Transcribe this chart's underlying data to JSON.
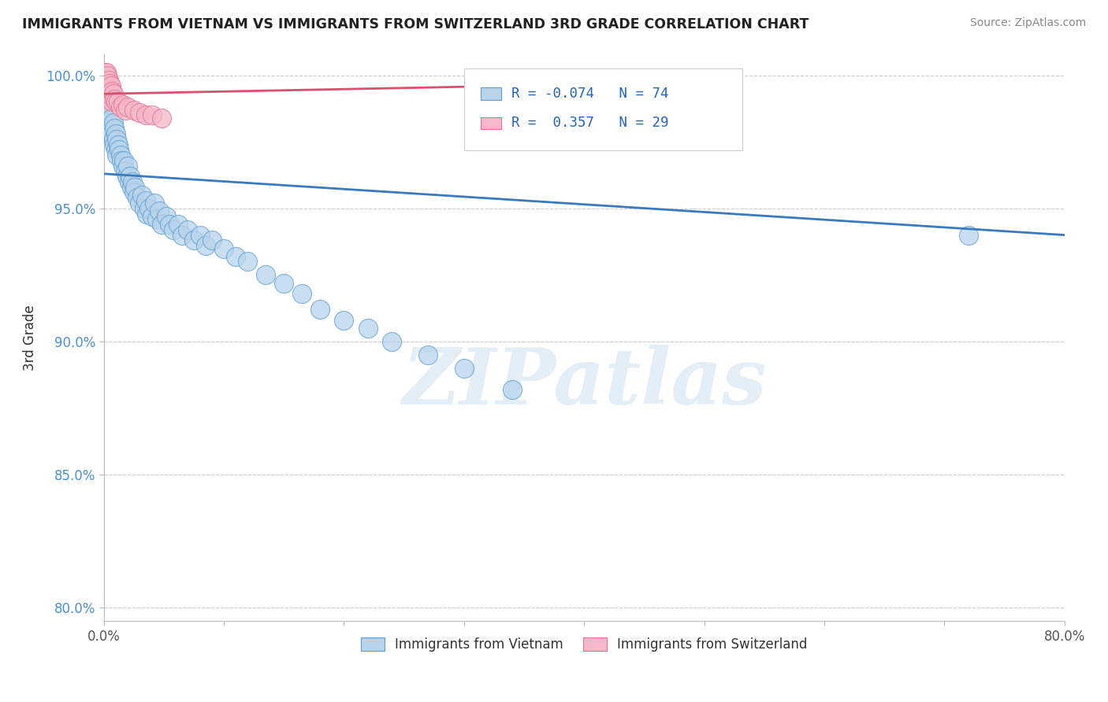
{
  "title": "IMMIGRANTS FROM VIETNAM VS IMMIGRANTS FROM SWITZERLAND 3RD GRADE CORRELATION CHART",
  "source": "Source: ZipAtlas.com",
  "ylabel": "3rd Grade",
  "xlim": [
    0.0,
    0.8
  ],
  "ylim": [
    0.795,
    1.008
  ],
  "xticks": [
    0.0,
    0.1,
    0.2,
    0.3,
    0.4,
    0.5,
    0.6,
    0.7,
    0.8
  ],
  "xticklabels": [
    "0.0%",
    "",
    "",
    "",
    "",
    "",
    "",
    "",
    "80.0%"
  ],
  "yticks": [
    0.8,
    0.85,
    0.9,
    0.95,
    1.0
  ],
  "yticklabels": [
    "80.0%",
    "85.0%",
    "90.0%",
    "95.0%",
    "100.0%"
  ],
  "blue_fill": "#b8d4eb",
  "pink_fill": "#f5b8c8",
  "blue_edge": "#5a9fd4",
  "pink_edge": "#e87090",
  "blue_line_color": "#3a7abf",
  "pink_line_color": "#d95070",
  "r_blue": -0.074,
  "n_blue": 74,
  "r_pink": 0.357,
  "n_pink": 29,
  "watermark": "ZIPatlas",
  "legend_blue": "Immigrants from Vietnam",
  "legend_pink": "Immigrants from Switzerland",
  "blue_points_x": [
    0.001,
    0.001,
    0.002,
    0.002,
    0.003,
    0.003,
    0.003,
    0.004,
    0.004,
    0.005,
    0.005,
    0.006,
    0.006,
    0.007,
    0.007,
    0.008,
    0.008,
    0.009,
    0.009,
    0.01,
    0.01,
    0.011,
    0.011,
    0.012,
    0.013,
    0.014,
    0.015,
    0.016,
    0.017,
    0.018,
    0.019,
    0.02,
    0.021,
    0.022,
    0.023,
    0.024,
    0.025,
    0.026,
    0.028,
    0.03,
    0.032,
    0.034,
    0.035,
    0.036,
    0.038,
    0.04,
    0.042,
    0.044,
    0.046,
    0.048,
    0.052,
    0.055,
    0.058,
    0.062,
    0.065,
    0.07,
    0.075,
    0.08,
    0.085,
    0.09,
    0.1,
    0.11,
    0.12,
    0.135,
    0.15,
    0.165,
    0.18,
    0.2,
    0.22,
    0.24,
    0.27,
    0.3,
    0.34,
    0.72
  ],
  "blue_points_y": [
    0.99,
    0.984,
    0.992,
    0.986,
    0.993,
    0.988,
    0.983,
    0.99,
    0.985,
    0.988,
    0.982,
    0.986,
    0.98,
    0.984,
    0.978,
    0.982,
    0.976,
    0.98,
    0.974,
    0.978,
    0.972,
    0.976,
    0.97,
    0.974,
    0.972,
    0.97,
    0.968,
    0.966,
    0.968,
    0.964,
    0.962,
    0.966,
    0.96,
    0.962,
    0.958,
    0.96,
    0.956,
    0.958,
    0.954,
    0.952,
    0.955,
    0.95,
    0.953,
    0.948,
    0.95,
    0.947,
    0.952,
    0.946,
    0.949,
    0.944,
    0.947,
    0.944,
    0.942,
    0.944,
    0.94,
    0.942,
    0.938,
    0.94,
    0.936,
    0.938,
    0.935,
    0.932,
    0.93,
    0.925,
    0.922,
    0.918,
    0.912,
    0.908,
    0.905,
    0.9,
    0.895,
    0.89,
    0.882,
    0.94
  ],
  "pink_points_x": [
    0.001,
    0.001,
    0.001,
    0.002,
    0.002,
    0.003,
    0.003,
    0.003,
    0.004,
    0.004,
    0.005,
    0.005,
    0.006,
    0.007,
    0.007,
    0.008,
    0.009,
    0.01,
    0.012,
    0.014,
    0.016,
    0.018,
    0.02,
    0.025,
    0.03,
    0.035,
    0.04,
    0.048,
    0.42
  ],
  "pink_points_y": [
    1.001,
    0.998,
    0.994,
    1.001,
    0.997,
    1.0,
    0.996,
    0.992,
    0.998,
    0.994,
    0.997,
    0.993,
    0.996,
    0.994,
    0.99,
    0.993,
    0.991,
    0.99,
    0.99,
    0.988,
    0.989,
    0.987,
    0.988,
    0.987,
    0.986,
    0.985,
    0.985,
    0.984,
    0.987
  ],
  "blue_line_x0": 0.0,
  "blue_line_x1": 0.8,
  "blue_line_y0": 0.963,
  "blue_line_y1": 0.94,
  "pink_line_x0": 0.0,
  "pink_line_x1": 0.45,
  "pink_line_y0": 0.993,
  "pink_line_y1": 0.997
}
